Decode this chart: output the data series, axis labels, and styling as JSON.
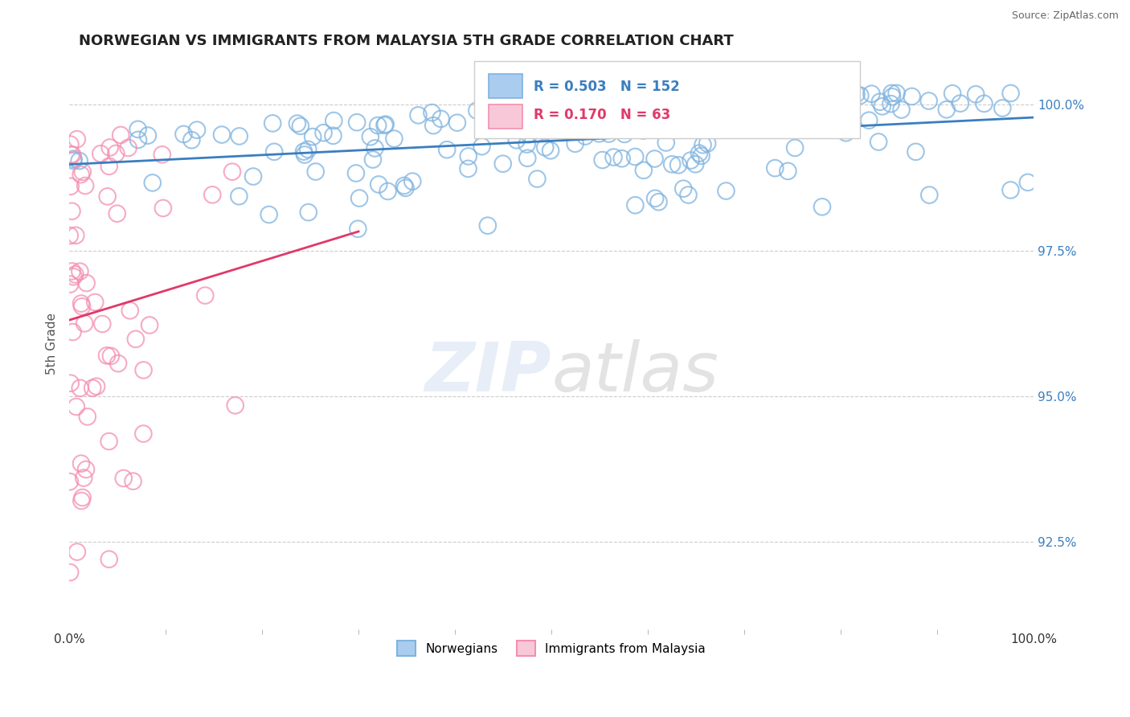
{
  "title": "NORWEGIAN VS IMMIGRANTS FROM MALAYSIA 5TH GRADE CORRELATION CHART",
  "source": "Source: ZipAtlas.com",
  "ylabel": "5th Grade",
  "legend_label1": "Norwegians",
  "legend_label2": "Immigrants from Malaysia",
  "R1": 0.503,
  "N1": 152,
  "R2": 0.17,
  "N2": 63,
  "color1": "#7eb3e0",
  "color2": "#f48fb1",
  "trendline1_color": "#3a7ec0",
  "trendline2_color": "#e0396a",
  "right_yticks": [
    92.5,
    95.0,
    97.5,
    100.0
  ],
  "xmin": 0.0,
  "xmax": 100.0,
  "ymin": 91.0,
  "ymax": 100.8,
  "background_color": "#ffffff",
  "seed": 42
}
